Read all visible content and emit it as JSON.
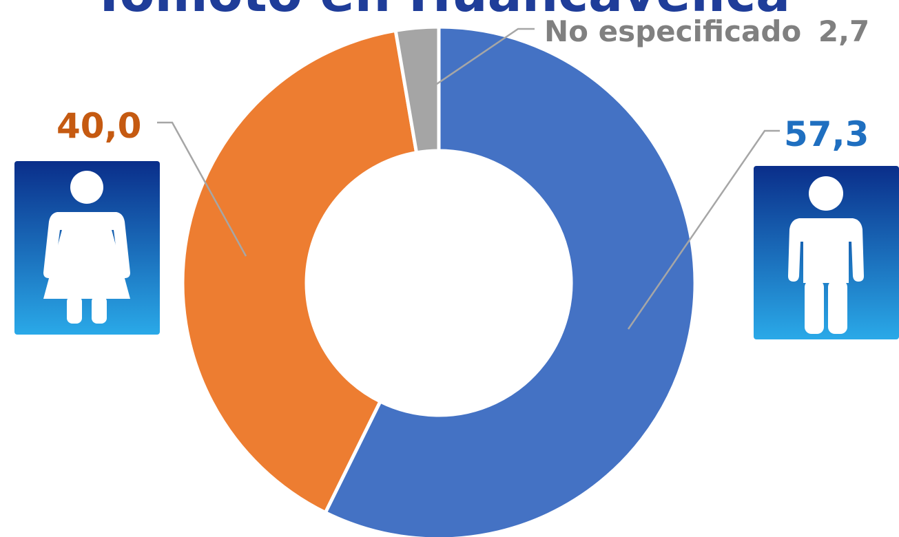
{
  "chart_data": {
    "type": "pie",
    "title": "Tomoto en Huancavelica",
    "slices": [
      {
        "label": "",
        "value": 57.3,
        "value_text": "57,3",
        "color": "#4472C4",
        "label_color": "#1F6FC0"
      },
      {
        "label": "",
        "value": 40.0,
        "value_text": "40,0",
        "color": "#ED7D31",
        "label_color": "#C55A11"
      },
      {
        "label": "No especificado",
        "value": 2.7,
        "value_text": "2,7",
        "color": "#A5A5A5",
        "label_color": "#808080"
      }
    ]
  },
  "icons": {
    "left": "female-person-icon",
    "right": "male-person-icon",
    "icon_bg_top": "#0A2E8A",
    "icon_bg_bottom": "#2AA9E8"
  }
}
